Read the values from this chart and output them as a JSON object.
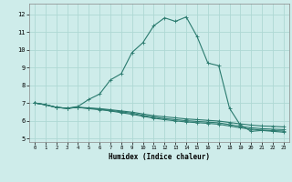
{
  "xlabel": "Humidex (Indice chaleur)",
  "ylabel": "",
  "background_color": "#ceecea",
  "grid_color": "#aed8d4",
  "line_color": "#2a7a6e",
  "xlim": [
    -0.5,
    23.5
  ],
  "ylim": [
    4.8,
    12.6
  ],
  "yticks": [
    5,
    6,
    7,
    8,
    9,
    10,
    11,
    12
  ],
  "xticks": [
    0,
    1,
    2,
    3,
    4,
    5,
    6,
    7,
    8,
    9,
    10,
    11,
    12,
    13,
    14,
    15,
    16,
    17,
    18,
    19,
    20,
    21,
    22,
    23
  ],
  "main_x": [
    0,
    1,
    2,
    3,
    4,
    5,
    6,
    7,
    8,
    9,
    10,
    11,
    12,
    13,
    14,
    15,
    16,
    17,
    18,
    19,
    20,
    21,
    22,
    23
  ],
  "main_y": [
    7.0,
    6.9,
    6.75,
    6.7,
    6.8,
    7.2,
    7.5,
    8.3,
    8.65,
    9.85,
    10.4,
    11.35,
    11.8,
    11.6,
    11.85,
    10.75,
    9.25,
    9.1,
    6.7,
    5.75,
    5.4,
    5.45,
    5.4,
    5.35
  ],
  "flat1_x": [
    0,
    1,
    2,
    3,
    4,
    5,
    6,
    7,
    8,
    9,
    10,
    11,
    12,
    13,
    14,
    15,
    16,
    17,
    18,
    19,
    20,
    21,
    22,
    23
  ],
  "flat1_y": [
    7.0,
    6.9,
    6.75,
    6.7,
    6.75,
    6.72,
    6.68,
    6.62,
    6.55,
    6.48,
    6.38,
    6.28,
    6.22,
    6.16,
    6.1,
    6.06,
    6.02,
    5.98,
    5.9,
    5.82,
    5.75,
    5.7,
    5.68,
    5.65
  ],
  "flat2_x": [
    0,
    1,
    2,
    3,
    4,
    5,
    6,
    7,
    8,
    9,
    10,
    11,
    12,
    13,
    14,
    15,
    16,
    17,
    18,
    19,
    20,
    21,
    22,
    23
  ],
  "flat2_y": [
    7.0,
    6.9,
    6.75,
    6.7,
    6.75,
    6.7,
    6.65,
    6.58,
    6.5,
    6.42,
    6.3,
    6.2,
    6.12,
    6.06,
    6.0,
    5.96,
    5.92,
    5.88,
    5.78,
    5.68,
    5.6,
    5.55,
    5.52,
    5.5
  ],
  "flat3_x": [
    0,
    1,
    2,
    3,
    4,
    5,
    6,
    7,
    8,
    9,
    10,
    11,
    12,
    13,
    14,
    15,
    16,
    17,
    18,
    19,
    20,
    21,
    22,
    23
  ],
  "flat3_y": [
    7.0,
    6.9,
    6.75,
    6.7,
    6.75,
    6.68,
    6.62,
    6.55,
    6.45,
    6.36,
    6.25,
    6.14,
    6.06,
    5.99,
    5.93,
    5.89,
    5.85,
    5.8,
    5.7,
    5.6,
    5.52,
    5.47,
    5.44,
    5.42
  ]
}
